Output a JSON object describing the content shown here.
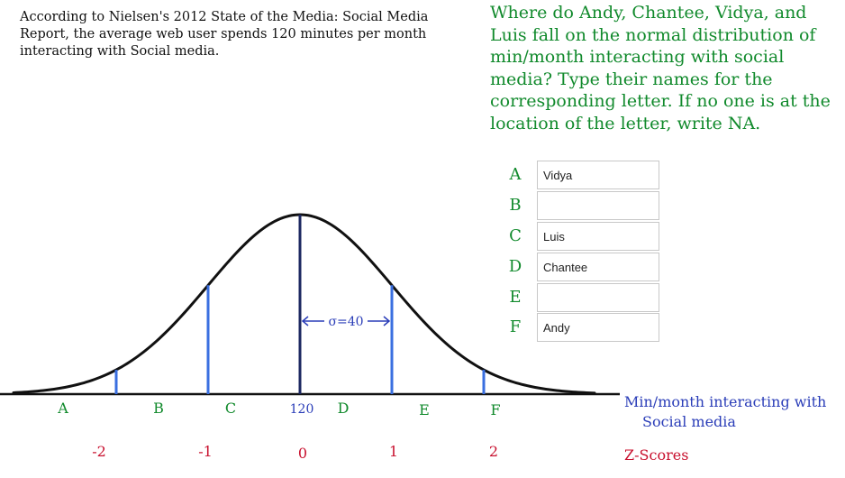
{
  "intro_text": "According to Nielsen's 2012 State of the Media: Social Media Report, the average web user spends 120 minutes per month interacting with Social media.",
  "instructions": "Where do Andy, Chantee, Vidya, and Luis fall on the normal distribution of min/month interacting with social media? Type their names for the corresponding letter. If no one is at the location of the letter, write NA.",
  "answers": [
    {
      "letter": "A",
      "value": "Vidya"
    },
    {
      "letter": "B",
      "value": ""
    },
    {
      "letter": "C",
      "value": "Luis"
    },
    {
      "letter": "D",
      "value": "Chantee"
    },
    {
      "letter": "E",
      "value": ""
    },
    {
      "letter": "F",
      "value": "Andy"
    }
  ],
  "diagram": {
    "sigma_label": "σ=40",
    "mean_label": "120",
    "letters": [
      "A",
      "B",
      "C",
      "D",
      "E",
      "F"
    ],
    "zscores": [
      "-2",
      "-1",
      "0",
      "1",
      "2"
    ],
    "axis_label": "Min/month interacting with Social media",
    "zscore_label": "Z-Scores"
  },
  "colors": {
    "green": "#118a2c",
    "red": "#c8102e",
    "blue": "#3a6fe0",
    "navy": "#2a3db8"
  }
}
